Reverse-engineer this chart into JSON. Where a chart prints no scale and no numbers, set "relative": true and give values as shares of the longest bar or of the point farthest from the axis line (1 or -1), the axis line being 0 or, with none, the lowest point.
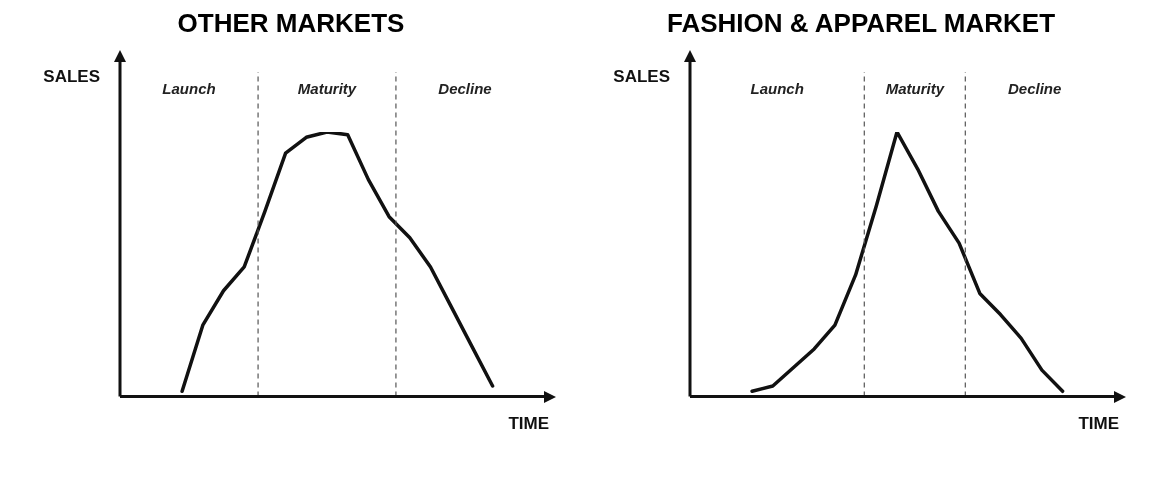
{
  "chart_data": [
    {
      "type": "line",
      "title": "OTHER MARKETS",
      "xlabel": "TIME",
      "ylabel": "SALES",
      "relative": true,
      "marker": "none",
      "line_style": "solid",
      "categories": [
        null,
        null,
        null,
        null,
        null,
        null,
        null,
        null,
        null,
        null,
        null,
        null,
        null,
        null,
        null,
        null,
        null,
        null,
        null,
        null,
        null
      ],
      "series": [
        {
          "color": "#111111",
          "values": [
            null,
            null,
            null,
            0.02,
            0.27,
            0.4,
            0.49,
            0.7,
            0.92,
            0.98,
            1,
            0.99,
            0.82,
            0.68,
            0.6,
            0.49,
            0.34,
            0.19,
            0.04,
            null,
            null
          ]
        }
      ],
      "annotations": [
        "Launch",
        "Maturity",
        "Decline"
      ]
    },
    {
      "type": "line",
      "title": "FASHION & APPAREL MARKET",
      "xlabel": "TIME",
      "ylabel": "SALES",
      "relative": true,
      "marker": "none",
      "line_style": "solid",
      "categories": [
        null,
        null,
        null,
        null,
        null,
        null,
        null,
        null,
        null,
        null,
        null,
        null,
        null,
        null,
        null,
        null,
        null,
        null,
        null,
        null,
        null
      ],
      "series": [
        {
          "color": "#111111",
          "values": [
            null,
            null,
            null,
            0.02,
            0.04,
            0.11,
            0.18,
            0.27,
            0.46,
            0.72,
            1,
            0.86,
            0.7,
            0.58,
            0.39,
            0.31,
            0.22,
            0.1,
            0.02,
            null,
            null
          ]
        }
      ],
      "annotations": [
        "Launch",
        "Maturity",
        "Decline"
      ]
    }
  ]
}
